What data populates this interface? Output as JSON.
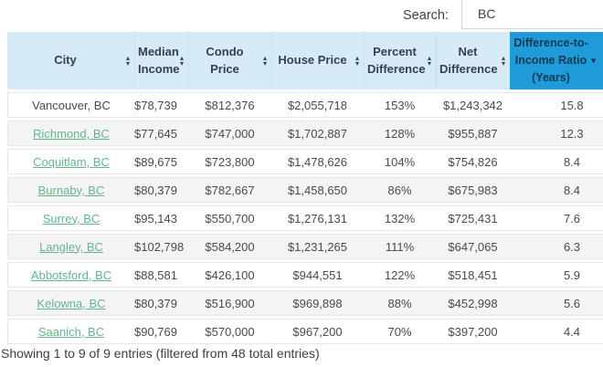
{
  "search": {
    "label": "Search:",
    "value": "BC"
  },
  "table": {
    "columns": [
      {
        "key": "city",
        "label": "City",
        "sort": "both",
        "highlight": false
      },
      {
        "key": "median_income",
        "label": "Median Income",
        "sort": "both",
        "highlight": false
      },
      {
        "key": "condo_price",
        "label": "Condo Price",
        "sort": "both",
        "highlight": false
      },
      {
        "key": "house_price",
        "label": "House Price",
        "sort": "both",
        "highlight": false
      },
      {
        "key": "percent_difference",
        "label": "Percent Difference",
        "sort": "both",
        "highlight": false
      },
      {
        "key": "net_difference",
        "label": "Net Difference",
        "sort": "both",
        "highlight": false
      },
      {
        "key": "ratio",
        "label": "Difference-to-Income Ratio (Years)",
        "sort": "desc",
        "highlight": true
      }
    ],
    "rows": [
      {
        "city": "Vancouver, BC",
        "is_link": false,
        "median_income": "$78,739",
        "condo_price": "$812,376",
        "house_price": "$2,055,718",
        "percent_difference": "153%",
        "net_difference": "$1,243,342",
        "ratio": "15.8"
      },
      {
        "city": "Richmond, BC",
        "is_link": true,
        "median_income": "$77,645",
        "condo_price": "$747,000",
        "house_price": "$1,702,887",
        "percent_difference": "128%",
        "net_difference": "$955,887",
        "ratio": "12.3"
      },
      {
        "city": "Coquitlam, BC",
        "is_link": true,
        "median_income": "$89,675",
        "condo_price": "$723,800",
        "house_price": "$1,478,626",
        "percent_difference": "104%",
        "net_difference": "$754,826",
        "ratio": "8.4"
      },
      {
        "city": "Burnaby, BC",
        "is_link": true,
        "median_income": "$80,379",
        "condo_price": "$782,667",
        "house_price": "$1,458,650",
        "percent_difference": "86%",
        "net_difference": "$675,983",
        "ratio": "8.4"
      },
      {
        "city": "Surrey, BC",
        "is_link": true,
        "median_income": "$95,143",
        "condo_price": "$550,700",
        "house_price": "$1,276,131",
        "percent_difference": "132%",
        "net_difference": "$725,431",
        "ratio": "7.6"
      },
      {
        "city": "Langley, BC",
        "is_link": true,
        "median_income": "$102,798",
        "condo_price": "$584,200",
        "house_price": "$1,231,265",
        "percent_difference": "111%",
        "net_difference": "$647,065",
        "ratio": "6.3"
      },
      {
        "city": "Abbotsford, BC",
        "is_link": true,
        "median_income": "$88,581",
        "condo_price": "$426,100",
        "house_price": "$944,551",
        "percent_difference": "122%",
        "net_difference": "$518,451",
        "ratio": "5.9"
      },
      {
        "city": "Kelowna, BC",
        "is_link": true,
        "median_income": "$80,379",
        "condo_price": "$516,900",
        "house_price": "$969,898",
        "percent_difference": "88%",
        "net_difference": "$452,998",
        "ratio": "5.6"
      },
      {
        "city": "Saanich, BC",
        "is_link": true,
        "median_income": "$90,769",
        "condo_price": "$570,000",
        "house_price": "$967,200",
        "percent_difference": "70%",
        "net_difference": "$397,200",
        "ratio": "4.4"
      }
    ]
  },
  "footer": {
    "info": "Showing 1 to 9 of 9 entries (filtered from 48 total entries)"
  },
  "colors": {
    "header_bg": "#d7eaf7",
    "header_text": "#36424a",
    "highlight_header_bg": "#1e9bd8",
    "highlight_header_text": "#143b4f",
    "link_green": "#63b68c",
    "stripe_bg": "#f4f4f4",
    "row_border": "#e6e6e6",
    "body_text": "#4a4a4a"
  },
  "icons": {
    "sort_both": "sort-both-icon",
    "sort_desc": "sort-desc-icon"
  }
}
